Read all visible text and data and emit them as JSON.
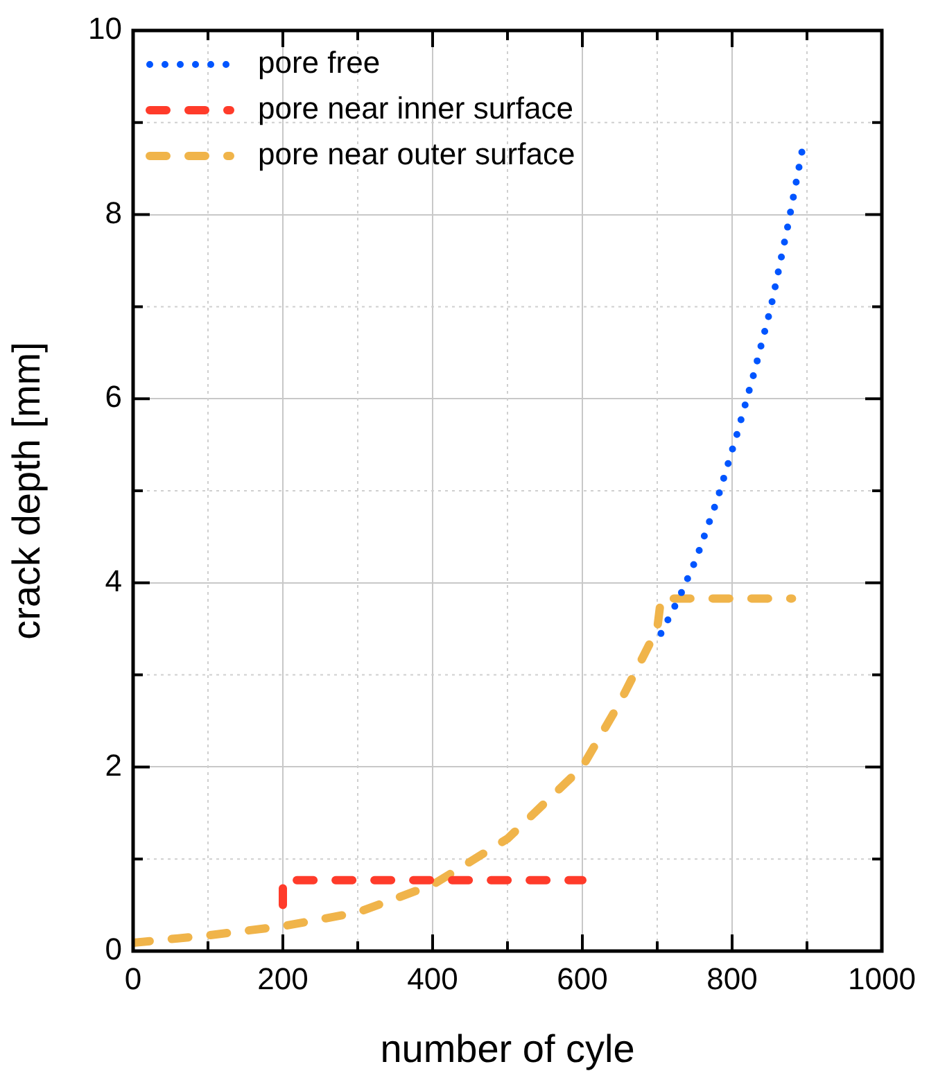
{
  "chart_data": {
    "type": "line",
    "xlabel": "number of cyle",
    "ylabel": "crack depth [mm]",
    "xlim": [
      0,
      1000
    ],
    "ylim": [
      0,
      10
    ],
    "xticks": [
      0,
      200,
      400,
      600,
      800,
      1000
    ],
    "yticks": [
      0,
      2,
      4,
      6,
      8,
      10
    ],
    "grid": true,
    "legend": "top left",
    "marker": "none",
    "series": [
      {
        "name": "pore free",
        "color": "#0055ff",
        "line_style": "dotted",
        "x": [
          705,
          730,
          752,
          780,
          806,
          830,
          852,
          875,
          896
        ],
        "values": [
          3.45,
          3.85,
          4.26,
          4.9,
          5.6,
          6.3,
          7.0,
          7.9,
          8.8
        ]
      },
      {
        "name": "pore near inner surface",
        "color": "#ff3b2a",
        "line_style": "dashed",
        "x": [
          200,
          200,
          600
        ],
        "values": [
          0.5,
          0.77,
          0.77
        ]
      },
      {
        "name": "pore near outer surface",
        "color": "#f0b44a",
        "line_style": "dashed",
        "x": [
          0,
          100,
          200,
          300,
          400,
          500,
          600,
          650,
          700,
          705,
          880
        ],
        "values": [
          0.09,
          0.17,
          0.27,
          0.42,
          0.72,
          1.22,
          2.0,
          2.7,
          3.5,
          3.83,
          3.83
        ]
      }
    ]
  }
}
